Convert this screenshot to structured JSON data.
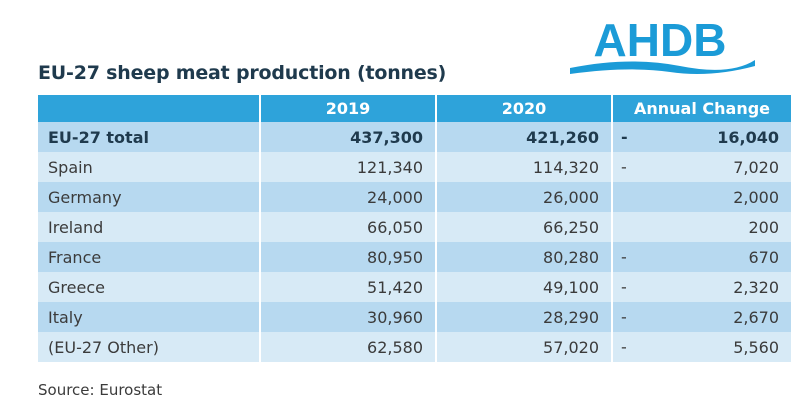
{
  "title": "EU-27 sheep meat production (tonnes)",
  "logo_text": "AHDB",
  "colors": {
    "header": "#2ea3da",
    "row_light": "#d7eaf6",
    "row_dark": "#b7d9f0",
    "logo": "#1b9bd7"
  },
  "columns": [
    "",
    "2019",
    "2020",
    "Annual Change"
  ],
  "rows": [
    {
      "name": "EU-27 total",
      "y2019": "437,300",
      "y2020": "421,260",
      "sign": "-",
      "change": "16,040"
    },
    {
      "name": "Spain",
      "y2019": "121,340",
      "y2020": "114,320",
      "sign": "-",
      "change": "7,020"
    },
    {
      "name": "Germany",
      "y2019": "24,000",
      "y2020": "26,000",
      "sign": "",
      "change": "2,000"
    },
    {
      "name": "Ireland",
      "y2019": "66,050",
      "y2020": "66,250",
      "sign": "",
      "change": "200"
    },
    {
      "name": "France",
      "y2019": "80,950",
      "y2020": "80,280",
      "sign": "-",
      "change": "670"
    },
    {
      "name": "Greece",
      "y2019": "51,420",
      "y2020": "49,100",
      "sign": "-",
      "change": "2,320"
    },
    {
      "name": "Italy",
      "y2019": "30,960",
      "y2020": "28,290",
      "sign": "-",
      "change": "2,670"
    },
    {
      "name": "(EU-27 Other)",
      "y2019": "62,580",
      "y2020": "57,020",
      "sign": "-",
      "change": "5,560"
    }
  ],
  "source": "Source: Eurostat"
}
